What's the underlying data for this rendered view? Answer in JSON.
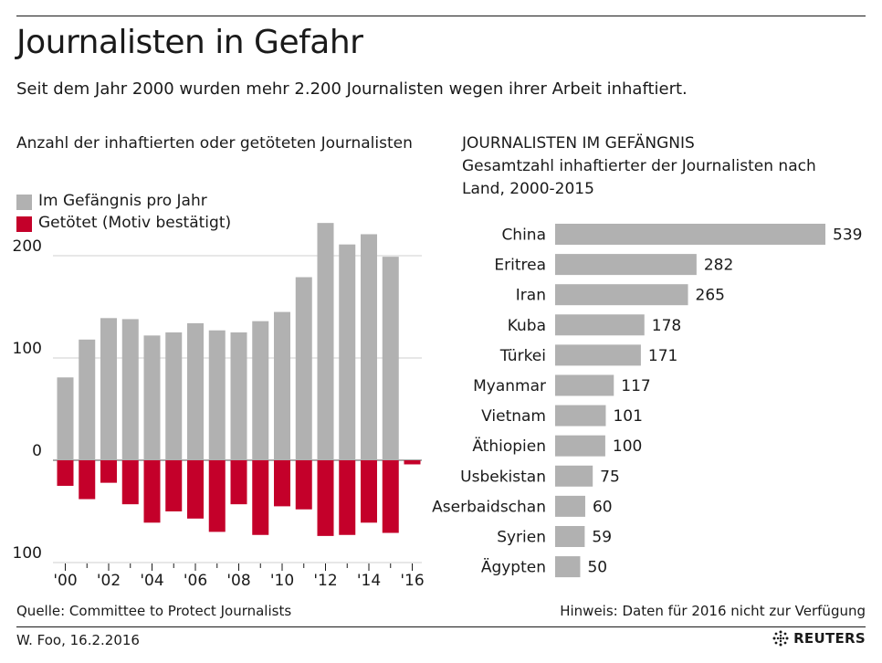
{
  "header": {
    "title": "Journalisten in Gefahr",
    "subtitle": "Seit dem Jahr 2000 wurden mehr 2.200 Journalisten wegen ihrer Arbeit inhaftiert."
  },
  "left_panel": {
    "label": "Anzahl der inhaftierten oder getöteten Journalisten"
  },
  "right_panel": {
    "title": "JOURNALISTEN IM GEFÄNGNIS",
    "subtitle_line1": "Gesamtzahl inhaftierter der Journalisten nach",
    "subtitle_line2": "Land, 2000-2015"
  },
  "footer": {
    "source": "Quelle: Committee to Protect Journalists",
    "note": "Hinweis: Daten für 2016 nicht zur Verfügung",
    "credit": "W. Foo, 16.2.2016",
    "logo_text": "REUTERS"
  },
  "colors": {
    "jailed": "#b1b1b1",
    "killed": "#c4002a",
    "text": "#1a1a1a",
    "grid": "#cfcfcf"
  },
  "chart_data": [
    {
      "type": "bar",
      "stacking": "diverging",
      "x": [
        2000,
        2001,
        2002,
        2003,
        2004,
        2005,
        2006,
        2007,
        2008,
        2009,
        2010,
        2011,
        2012,
        2013,
        2014,
        2015,
        2016
      ],
      "xticks": [
        2000,
        2002,
        2004,
        2006,
        2008,
        2010,
        2012,
        2014,
        2016
      ],
      "xtick_labels": [
        "'00",
        "'02",
        "'04",
        "'06",
        "'08",
        "'10",
        "'12",
        "'14",
        "'16"
      ],
      "yticks": [
        200,
        100,
        0,
        -100
      ],
      "ytick_labels": [
        "200",
        "100",
        "0",
        "100"
      ],
      "ylim": [
        -100,
        230
      ],
      "grid": true,
      "legend_position": "top-left",
      "series": [
        {
          "name": "Im Gefängnis pro Jahr",
          "values": [
            81,
            118,
            139,
            138,
            122,
            125,
            134,
            127,
            125,
            136,
            145,
            179,
            232,
            211,
            221,
            199,
            null
          ]
        },
        {
          "name": "Getötet (Motiv bestätigt)",
          "values": [
            -25,
            -38,
            -22,
            -43,
            -61,
            -50,
            -57,
            -70,
            -43,
            -73,
            -45,
            -48,
            -74,
            -73,
            -61,
            -71,
            -4
          ]
        }
      ]
    },
    {
      "type": "bar",
      "orientation": "horizontal",
      "categories": [
        "China",
        "Eritrea",
        "Iran",
        "Kuba",
        "Türkei",
        "Myanmar",
        "Vietnam",
        "Äthiopien",
        "Usbekistan",
        "Aserbaidschan",
        "Syrien",
        "Ägypten"
      ],
      "values": [
        539,
        282,
        265,
        178,
        171,
        117,
        101,
        100,
        75,
        60,
        59,
        50
      ],
      "xlim": [
        0,
        539
      ]
    }
  ]
}
